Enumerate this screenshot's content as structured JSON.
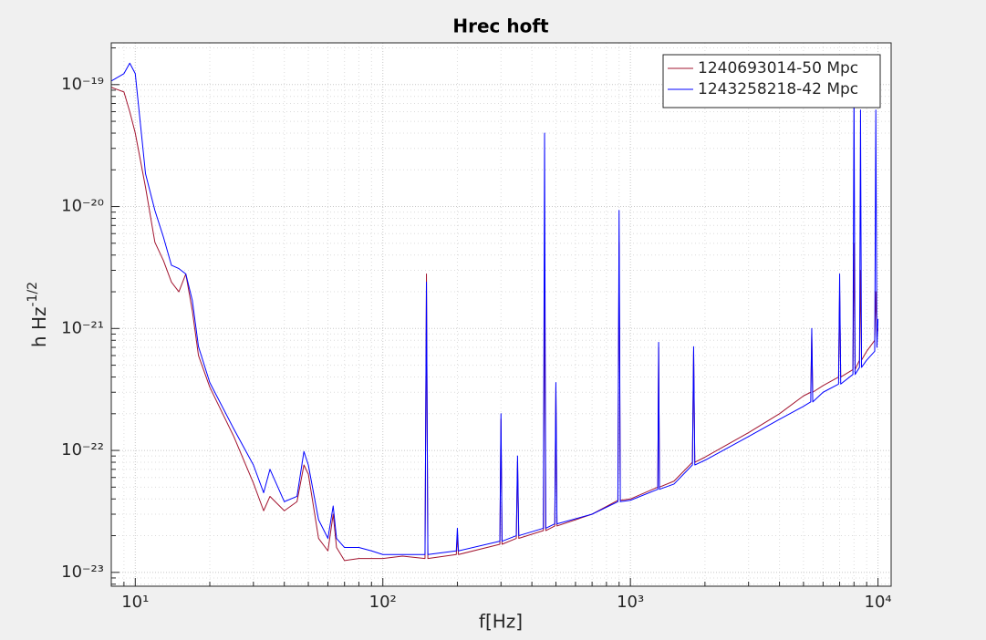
{
  "chart_data": {
    "type": "line",
    "title": "Hrec hoft",
    "x_label": "f[Hz]",
    "y_label": "h Hz",
    "y_label_superscript": "-1/2",
    "x_scale": "log",
    "y_scale": "log",
    "grid": true,
    "minor_grid": true,
    "legend": "northeast",
    "xlim": [
      8,
      11300
    ],
    "ylim": [
      7.7e-24,
      2.2e-19
    ],
    "xticks": [
      {
        "value": 10,
        "label": "10¹"
      },
      {
        "value": 100,
        "label": "10²"
      },
      {
        "value": 1000,
        "label": "10³"
      },
      {
        "value": 10000,
        "label": "10⁴"
      }
    ],
    "yticks": [
      {
        "value": 1e-23,
        "label": "10⁻²³"
      },
      {
        "value": 1e-22,
        "label": "10⁻²²"
      },
      {
        "value": 1e-21,
        "label": "10⁻²¹"
      },
      {
        "value": 1e-20,
        "label": "10⁻²⁰"
      },
      {
        "value": 1e-19,
        "label": "10⁻¹⁹"
      }
    ],
    "xminorticks": [
      8,
      9,
      20,
      30,
      40,
      50,
      60,
      70,
      80,
      90,
      200,
      300,
      400,
      500,
      600,
      700,
      800,
      900,
      2000,
      3000,
      4000,
      5000,
      6000,
      7000,
      8000,
      9000
    ],
    "yminorticks": [
      8e-24,
      9e-24,
      2e-23,
      3e-23,
      4e-23,
      5e-23,
      6e-23,
      7e-23,
      8e-23,
      9e-23,
      2e-22,
      3e-22,
      4e-22,
      5e-22,
      6e-22,
      7e-22,
      8e-22,
      9e-22,
      2e-21,
      3e-21,
      4e-21,
      5e-21,
      6e-21,
      7e-21,
      8e-21,
      9e-21,
      2e-20,
      3e-20,
      4e-20,
      5e-20,
      6e-20,
      7e-20,
      8e-20,
      9e-20,
      2e-19
    ],
    "x": [
      8,
      9,
      9.5,
      10,
      11,
      12,
      13,
      14,
      15,
      16,
      17,
      18,
      20,
      25,
      30,
      33,
      35,
      40,
      45,
      48,
      50,
      55,
      60,
      63,
      65,
      70,
      80,
      90,
      100,
      120,
      148,
      150,
      152,
      198,
      200,
      202,
      297,
      300,
      303,
      346,
      350,
      354,
      445,
      450,
      455,
      495,
      500,
      505,
      700,
      890,
      900,
      910,
      1000,
      1290,
      1300,
      1310,
      1500,
      1780,
      1800,
      1820,
      2000,
      3000,
      4000,
      5000,
      5350,
      5400,
      5450,
      6000,
      6930,
      7000,
      7070,
      7920,
      8000,
      8080,
      8420,
      8500,
      8580,
      9000,
      9700,
      9800,
      9900,
      10000
    ],
    "series": [
      {
        "name": "1240693014-50 Mpc",
        "color": "#a2142f",
        "values": [
          9.5e-20,
          8.7e-20,
          6e-20,
          4e-20,
          1.44e-20,
          5.1e-21,
          3.6e-21,
          2.4e-21,
          2e-21,
          2.8e-21,
          1.4e-21,
          6e-22,
          3.3e-22,
          1.3e-22,
          5.4e-23,
          3.2e-23,
          4.2e-23,
          3.2e-23,
          3.8e-23,
          7.6e-23,
          6.4e-23,
          1.9e-23,
          1.5e-23,
          3e-23,
          1.6e-23,
          1.25e-23,
          1.3e-23,
          1.3e-23,
          1.3e-23,
          1.36e-23,
          1.3e-23,
          2.8e-21,
          1.3e-23,
          1.4e-23,
          2e-23,
          1.4e-23,
          1.7e-23,
          1.8e-22,
          1.7e-23,
          1.9e-23,
          8e-23,
          1.9e-23,
          2.2e-23,
          3.3e-21,
          2.2e-23,
          2.4e-23,
          3.3e-22,
          2.4e-23,
          3e-23,
          3.9e-23,
          5.1e-21,
          3.9e-23,
          4e-23,
          5e-23,
          7e-22,
          5e-23,
          5.6e-23,
          8e-23,
          6.5e-22,
          8e-23,
          8.8e-23,
          1.4e-22,
          2e-22,
          2.8e-22,
          3e-22,
          9e-22,
          3e-22,
          3.4e-22,
          4e-22,
          2e-21,
          4e-22,
          4.6e-22,
          5e-21,
          4.6e-22,
          5.5e-22,
          3e-21,
          5.5e-22,
          6.5e-22,
          8e-22,
          2e-21,
          8.5e-22,
          1e-21
        ]
      },
      {
        "name": "1243258218-42 Mpc",
        "color": "#0000ff",
        "values": [
          1.07e-19,
          1.23e-19,
          1.5e-19,
          1.23e-19,
          1.86e-20,
          9.3e-21,
          5.6e-21,
          3.3e-21,
          3.1e-21,
          2.8e-21,
          1.7e-21,
          7.1e-22,
          3.6e-22,
          1.5e-22,
          7.6e-23,
          4.5e-23,
          7e-23,
          3.8e-23,
          4.2e-23,
          9.8e-23,
          7.6e-23,
          2.7e-23,
          1.9e-23,
          3.5e-23,
          1.9e-23,
          1.6e-23,
          1.6e-23,
          1.5e-23,
          1.4e-23,
          1.4e-23,
          1.4e-23,
          2.4e-21,
          1.4e-23,
          1.5e-23,
          2.3e-23,
          1.5e-23,
          1.8e-23,
          2e-22,
          1.8e-23,
          2e-23,
          9e-23,
          2e-23,
          2.3e-23,
          4e-20,
          2.3e-23,
          2.5e-23,
          3.6e-22,
          2.5e-23,
          3e-23,
          3.8e-23,
          9.3e-21,
          3.8e-23,
          3.9e-23,
          4.8e-23,
          7.7e-22,
          4.8e-23,
          5.3e-23,
          7.6e-23,
          7.1e-22,
          7.6e-23,
          8.3e-23,
          1.3e-22,
          1.8e-22,
          2.3e-22,
          2.5e-22,
          1e-21,
          2.5e-22,
          3e-22,
          3.5e-22,
          2.8e-21,
          3.5e-22,
          4.2e-22,
          9.5e-20,
          4.2e-22,
          4.8e-22,
          6.2e-20,
          4.8e-22,
          5.5e-22,
          6.5e-22,
          6.2e-20,
          7e-22,
          1.2e-21
        ]
      }
    ]
  }
}
